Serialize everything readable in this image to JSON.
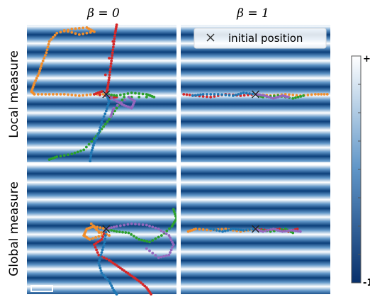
{
  "chart_data": {
    "type": "scatter",
    "column_titles": [
      "β = 0",
      "β = 1"
    ],
    "row_labels": [
      "Local measure",
      "Global measure"
    ],
    "legend": {
      "marker_label": "initial position",
      "placement": "top-right"
    },
    "colorbar": {
      "max_label": "+1",
      "min_label": "-1",
      "range": [
        -1,
        1
      ]
    },
    "background": "horizontal sinusoidal stripes, 8 periods per panel",
    "panels": [
      {
        "row": "Local measure",
        "column": "β = 0",
        "initial_position": [
          0.53,
          0.5
        ],
        "series": [
          {
            "color": "#f28e2b",
            "points": [
              [
                0.53,
                0.5
              ],
              [
                0.45,
                0.5
              ],
              [
                0.35,
                0.51
              ],
              [
                0.25,
                0.5
              ],
              [
                0.15,
                0.5
              ],
              [
                0.05,
                0.5
              ],
              [
                0.03,
                0.48
              ],
              [
                0.05,
                0.42
              ],
              [
                0.08,
                0.35
              ],
              [
                0.1,
                0.28
              ],
              [
                0.13,
                0.2
              ],
              [
                0.15,
                0.12
              ],
              [
                0.2,
                0.06
              ],
              [
                0.3,
                0.03
              ],
              [
                0.4,
                0.02
              ],
              [
                0.45,
                0.05
              ],
              [
                0.35,
                0.07
              ],
              [
                0.25,
                0.04
              ]
            ]
          },
          {
            "color": "#d62728",
            "points": [
              [
                0.53,
                0.5
              ],
              [
                0.54,
                0.45
              ],
              [
                0.55,
                0.38
              ],
              [
                0.56,
                0.3
              ],
              [
                0.57,
                0.22
              ],
              [
                0.58,
                0.14
              ],
              [
                0.59,
                0.06
              ],
              [
                0.6,
                0.0
              ],
              [
                0.5,
                0.48
              ],
              [
                0.45,
                0.5
              ],
              [
                0.6,
                0.52
              ],
              [
                0.55,
                0.53
              ]
            ]
          },
          {
            "color": "#2ca02c",
            "points": [
              [
                0.53,
                0.5
              ],
              [
                0.6,
                0.51
              ],
              [
                0.7,
                0.49
              ],
              [
                0.8,
                0.5
              ],
              [
                0.85,
                0.52
              ],
              [
                0.65,
                0.52
              ],
              [
                0.6,
                0.6
              ],
              [
                0.55,
                0.68
              ],
              [
                0.5,
                0.75
              ],
              [
                0.45,
                0.82
              ],
              [
                0.38,
                0.9
              ],
              [
                0.3,
                0.93
              ],
              [
                0.2,
                0.95
              ],
              [
                0.15,
                0.97
              ]
            ]
          },
          {
            "color": "#1f77b4",
            "points": [
              [
                0.53,
                0.5
              ],
              [
                0.55,
                0.55
              ],
              [
                0.53,
                0.62
              ],
              [
                0.5,
                0.7
              ],
              [
                0.48,
                0.78
              ],
              [
                0.45,
                0.85
              ],
              [
                0.43,
                0.92
              ],
              [
                0.42,
                1.0
              ]
            ]
          },
          {
            "color": "#9467bd",
            "points": [
              [
                0.53,
                0.5
              ],
              [
                0.6,
                0.55
              ],
              [
                0.65,
                0.58
              ],
              [
                0.7,
                0.6
              ],
              [
                0.72,
                0.55
              ],
              [
                0.68,
                0.52
              ],
              [
                0.58,
                0.6
              ],
              [
                0.56,
                0.66
              ]
            ]
          }
        ]
      },
      {
        "row": "Local measure",
        "column": "β = 1",
        "initial_position": [
          0.5,
          0.5
        ],
        "series": [
          {
            "color": "#f28e2b",
            "points": [
              [
                0.5,
                0.5
              ],
              [
                0.6,
                0.51
              ],
              [
                0.7,
                0.5
              ],
              [
                0.8,
                0.51
              ],
              [
                0.9,
                0.5
              ],
              [
                0.98,
                0.5
              ]
            ]
          },
          {
            "color": "#d62728",
            "points": [
              [
                0.5,
                0.5
              ],
              [
                0.4,
                0.51
              ],
              [
                0.3,
                0.5
              ],
              [
                0.2,
                0.52
              ],
              [
                0.1,
                0.51
              ],
              [
                0.02,
                0.5
              ]
            ]
          },
          {
            "color": "#2ca02c",
            "points": [
              [
                0.5,
                0.5
              ],
              [
                0.55,
                0.52
              ],
              [
                0.65,
                0.51
              ],
              [
                0.75,
                0.53
              ],
              [
                0.82,
                0.51
              ]
            ]
          },
          {
            "color": "#1f77b4",
            "points": [
              [
                0.5,
                0.5
              ],
              [
                0.42,
                0.49
              ],
              [
                0.35,
                0.51
              ],
              [
                0.25,
                0.5
              ],
              [
                0.15,
                0.5
              ],
              [
                0.08,
                0.51
              ]
            ]
          },
          {
            "color": "#9467bd",
            "points": [
              [
                0.5,
                0.5
              ],
              [
                0.56,
                0.51
              ],
              [
                0.62,
                0.53
              ],
              [
                0.68,
                0.51
              ],
              [
                0.72,
                0.52
              ]
            ]
          }
        ]
      },
      {
        "row": "Global measure",
        "column": "β = 0",
        "initial_position": [
          0.53,
          0.5
        ],
        "series": [
          {
            "color": "#f28e2b",
            "points": [
              [
                0.53,
                0.5
              ],
              [
                0.45,
                0.48
              ],
              [
                0.4,
                0.5
              ],
              [
                0.38,
                0.55
              ],
              [
                0.42,
                0.58
              ],
              [
                0.5,
                0.55
              ],
              [
                0.43,
                0.46
              ],
              [
                0.48,
                0.52
              ],
              [
                0.55,
                0.55
              ]
            ]
          },
          {
            "color": "#d62728",
            "points": [
              [
                0.53,
                0.5
              ],
              [
                0.5,
                0.58
              ],
              [
                0.45,
                0.62
              ],
              [
                0.48,
                0.7
              ],
              [
                0.55,
                0.74
              ],
              [
                0.6,
                0.78
              ],
              [
                0.65,
                0.82
              ],
              [
                0.7,
                0.86
              ],
              [
                0.75,
                0.9
              ],
              [
                0.8,
                0.95
              ],
              [
                0.83,
                1.0
              ]
            ]
          },
          {
            "color": "#2ca02c",
            "points": [
              [
                0.53,
                0.5
              ],
              [
                0.6,
                0.52
              ],
              [
                0.68,
                0.53
              ],
              [
                0.75,
                0.58
              ],
              [
                0.82,
                0.6
              ],
              [
                0.9,
                0.55
              ],
              [
                0.97,
                0.48
              ],
              [
                1.0,
                0.42
              ],
              [
                0.98,
                0.35
              ]
            ]
          },
          {
            "color": "#1f77b4",
            "points": [
              [
                0.53,
                0.5
              ],
              [
                0.52,
                0.6
              ],
              [
                0.5,
                0.68
              ],
              [
                0.48,
                0.76
              ],
              [
                0.5,
                0.84
              ],
              [
                0.55,
                0.9
              ],
              [
                0.58,
                0.97
              ],
              [
                0.6,
                1.0
              ]
            ]
          },
          {
            "color": "#9467bd",
            "points": [
              [
                0.53,
                0.5
              ],
              [
                0.6,
                0.48
              ],
              [
                0.7,
                0.46
              ],
              [
                0.8,
                0.47
              ],
              [
                0.88,
                0.5
              ],
              [
                0.95,
                0.55
              ],
              [
                0.98,
                0.62
              ],
              [
                0.95,
                0.7
              ],
              [
                0.88,
                0.72
              ],
              [
                0.8,
                0.65
              ]
            ]
          }
        ]
      },
      {
        "row": "Global measure",
        "column": "β = 1",
        "initial_position": [
          0.5,
          0.5
        ],
        "series": [
          {
            "color": "#f28e2b",
            "points": [
              [
                0.5,
                0.5
              ],
              [
                0.4,
                0.52
              ],
              [
                0.3,
                0.5
              ],
              [
                0.2,
                0.51
              ],
              [
                0.1,
                0.5
              ],
              [
                0.05,
                0.52
              ]
            ]
          },
          {
            "color": "#d62728",
            "points": [
              [
                0.5,
                0.5
              ],
              [
                0.58,
                0.51
              ],
              [
                0.66,
                0.5
              ],
              [
                0.72,
                0.52
              ],
              [
                0.78,
                0.5
              ]
            ]
          },
          {
            "color": "#2ca02c",
            "points": [
              [
                0.5,
                0.5
              ],
              [
                0.6,
                0.52
              ],
              [
                0.7,
                0.5
              ],
              [
                0.75,
                0.53
              ]
            ]
          },
          {
            "color": "#1f77b4",
            "points": [
              [
                0.5,
                0.5
              ],
              [
                0.42,
                0.51
              ],
              [
                0.35,
                0.5
              ],
              [
                0.28,
                0.52
              ],
              [
                0.2,
                0.5
              ]
            ]
          },
          {
            "color": "#9467bd",
            "points": [
              [
                0.5,
                0.5
              ],
              [
                0.55,
                0.52
              ],
              [
                0.62,
                0.5
              ],
              [
                0.68,
                0.52
              ],
              [
                0.74,
                0.51
              ],
              [
                0.8,
                0.52
              ]
            ]
          }
        ]
      }
    ]
  }
}
